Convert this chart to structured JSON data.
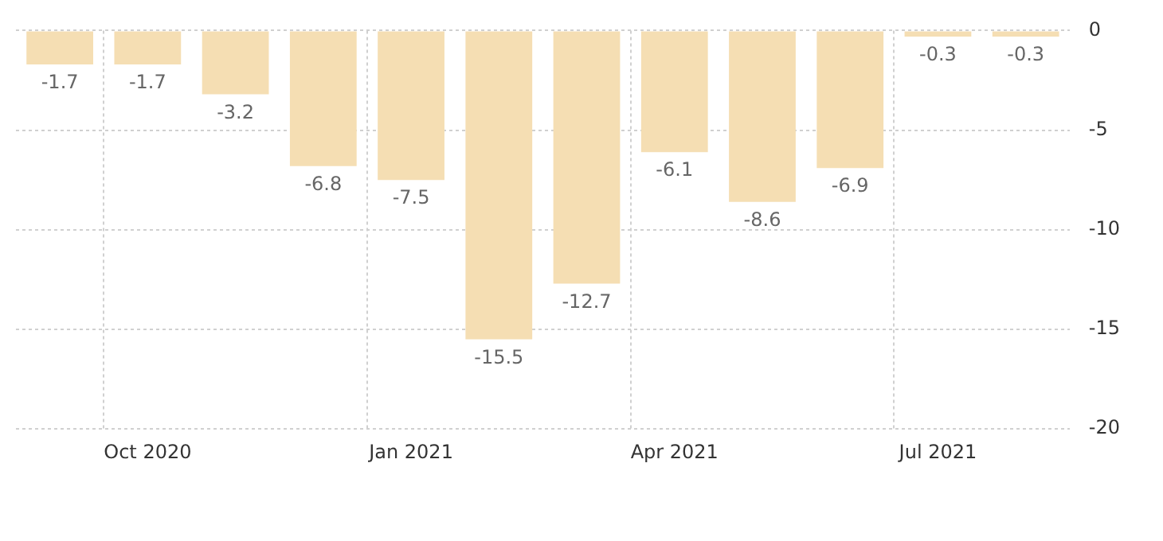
{
  "chart_data": {
    "type": "bar",
    "categories": [
      null,
      "Oct 2020",
      null,
      null,
      "Jan 2021",
      null,
      null,
      "Apr 2021",
      null,
      null,
      "Jul 2021",
      null
    ],
    "values": [
      -1.7,
      -1.7,
      -3.2,
      -6.8,
      -7.5,
      -15.5,
      -12.7,
      -6.1,
      -8.6,
      -6.9,
      -0.3,
      -0.3
    ],
    "color": "#f5deb3",
    "ylim": [
      -20,
      0
    ],
    "yticks": [
      -20,
      -15,
      -10,
      -5,
      0
    ],
    "grid": true,
    "data_labels": true,
    "legend": false
  }
}
